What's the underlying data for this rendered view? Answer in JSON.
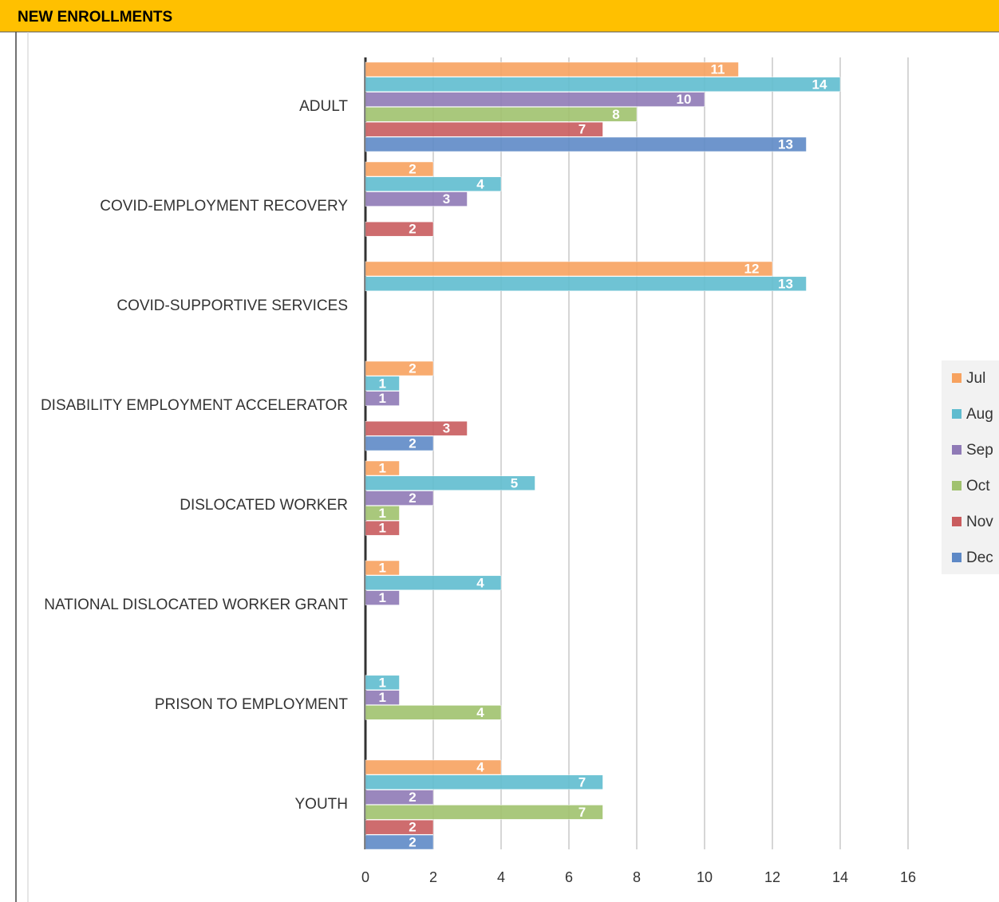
{
  "chart_data": {
    "type": "hbar",
    "title": "NEW ENROLLMENTS",
    "categories": [
      "ADULT",
      "COVID-EMPLOYMENT RECOVERY",
      "COVID-SUPPORTIVE SERVICES",
      "DISABILITY EMPLOYMENT ACCELERATOR",
      "DISLOCATED WORKER",
      "NATIONAL DISLOCATED WORKER GRANT",
      "PRISON TO EMPLOYMENT",
      "YOUTH"
    ],
    "series": [
      {
        "name": "Jul",
        "color": "#f7a25f",
        "values": [
          11,
          2,
          12,
          2,
          1,
          1,
          null,
          4
        ]
      },
      {
        "name": "Aug",
        "color": "#5fbccf",
        "values": [
          14,
          4,
          13,
          1,
          5,
          4,
          1,
          7
        ]
      },
      {
        "name": "Sep",
        "color": "#8f7ab6",
        "values": [
          10,
          3,
          null,
          1,
          2,
          1,
          1,
          2
        ]
      },
      {
        "name": "Oct",
        "color": "#a0c26e",
        "values": [
          8,
          null,
          null,
          null,
          1,
          null,
          4,
          7
        ]
      },
      {
        "name": "Nov",
        "color": "#c95c5e",
        "values": [
          7,
          2,
          null,
          3,
          1,
          null,
          null,
          2
        ]
      },
      {
        "name": "Dec",
        "color": "#5e89c6",
        "values": [
          13,
          null,
          null,
          2,
          null,
          null,
          null,
          2
        ]
      }
    ],
    "xlim": [
      0,
      16
    ],
    "xticks": [
      0,
      2,
      4,
      6,
      8,
      10,
      12,
      14,
      16
    ],
    "grid": true,
    "legend": "right"
  }
}
